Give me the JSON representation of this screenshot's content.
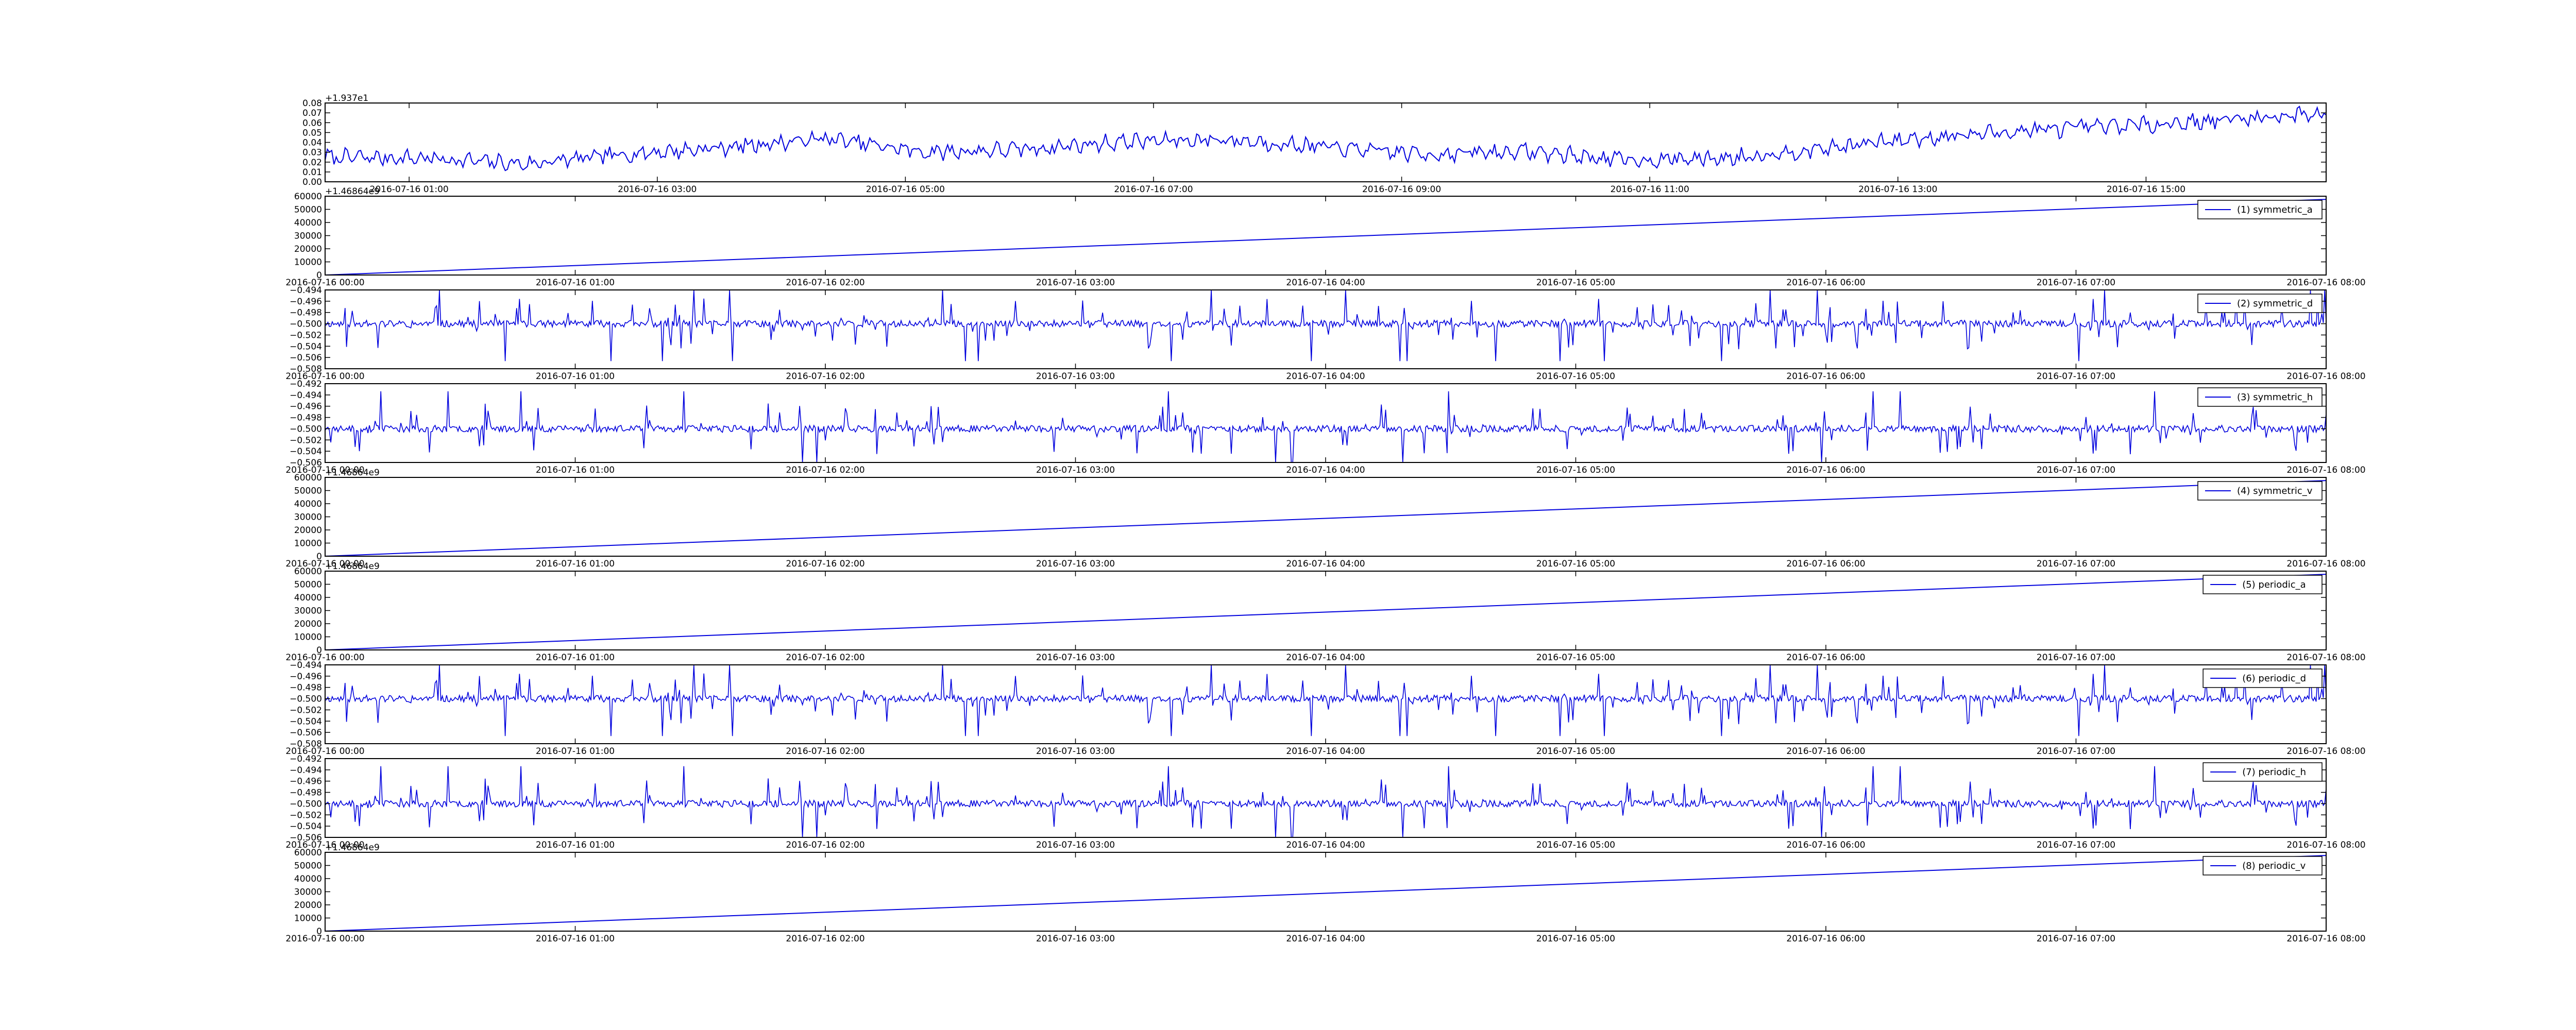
{
  "figure": {
    "colors": {
      "line": "#0000dd",
      "axes": "#000000",
      "background": "#ffffff"
    }
  },
  "chart_data": [
    {
      "id": "p0",
      "type": "line",
      "offset_text": "+1.937e1",
      "ylim": [
        0.0,
        0.08
      ],
      "y_ticks": [
        "0.00",
        "0.01",
        "0.02",
        "0.03",
        "0.04",
        "0.05",
        "0.06",
        "0.07",
        "0.08"
      ],
      "x_ticks": [
        "2016-07-16 01:00",
        "2016-07-16 03:00",
        "2016-07-16 05:00",
        "2016-07-16 07:00",
        "2016-07-16 09:00",
        "2016-07-16 11:00",
        "2016-07-16 13:00",
        "2016-07-16 15:00"
      ],
      "x_tick_positions": [
        0.042,
        0.166,
        0.29,
        0.414,
        0.538,
        0.662,
        0.786,
        0.91
      ],
      "series_style": "noisy-trend",
      "x": [
        0,
        0.05,
        0.1,
        0.15,
        0.2,
        0.25,
        0.3,
        0.35,
        0.4,
        0.45,
        0.5,
        0.55,
        0.6,
        0.65,
        0.7,
        0.75,
        0.8,
        0.85,
        0.9,
        0.95,
        1.0
      ],
      "y": [
        0.025,
        0.024,
        0.018,
        0.028,
        0.035,
        0.044,
        0.03,
        0.033,
        0.041,
        0.043,
        0.035,
        0.028,
        0.031,
        0.022,
        0.024,
        0.034,
        0.045,
        0.052,
        0.057,
        0.063,
        0.07
      ]
    },
    {
      "id": "p1",
      "type": "line",
      "offset_text": "+1.46864e9",
      "ylim": [
        0,
        60000
      ],
      "y_ticks": [
        "0",
        "10000",
        "20000",
        "30000",
        "40000",
        "50000",
        "60000"
      ],
      "x_ticks": [
        "2016-07-16 00:00",
        "2016-07-16 01:00",
        "2016-07-16 02:00",
        "2016-07-16 03:00",
        "2016-07-16 04:00",
        "2016-07-16 05:00",
        "2016-07-16 06:00",
        "2016-07-16 07:00",
        "2016-07-16 08:00"
      ],
      "series": [
        {
          "name": "(1) symmetric_a"
        }
      ],
      "series_style": "ramp",
      "x": [
        0,
        1
      ],
      "y": [
        0,
        57600
      ]
    },
    {
      "id": "p2",
      "type": "line",
      "ylim": [
        -0.508,
        -0.494
      ],
      "y_ticks": [
        "−0.508",
        "−0.506",
        "−0.504",
        "−0.502",
        "−0.500",
        "−0.498",
        "−0.496",
        "−0.494"
      ],
      "x_ticks": [
        "2016-07-16 00:00",
        "2016-07-16 01:00",
        "2016-07-16 02:00",
        "2016-07-16 03:00",
        "2016-07-16 04:00",
        "2016-07-16 05:00",
        "2016-07-16 06:00",
        "2016-07-16 07:00",
        "2016-07-16 08:00"
      ],
      "series": [
        {
          "name": "(2) symmetric_d"
        }
      ],
      "series_style": "spikes",
      "seed": 11,
      "center": -0.5,
      "amp": 0.0035
    },
    {
      "id": "p3",
      "type": "line",
      "ylim": [
        -0.506,
        -0.492
      ],
      "y_ticks": [
        "−0.506",
        "−0.504",
        "−0.502",
        "−0.500",
        "−0.498",
        "−0.496",
        "−0.494",
        "−0.492"
      ],
      "x_ticks": [
        "2016-07-16 00:00",
        "2016-07-16 01:00",
        "2016-07-16 02:00",
        "2016-07-16 03:00",
        "2016-07-16 04:00",
        "2016-07-16 05:00",
        "2016-07-16 06:00",
        "2016-07-16 07:00",
        "2016-07-16 08:00"
      ],
      "series": [
        {
          "name": "(3) symmetric_h"
        }
      ],
      "series_style": "spikes",
      "seed": 23,
      "center": -0.5,
      "amp": 0.0035
    },
    {
      "id": "p4",
      "type": "line",
      "offset_text": "+1.46864e9",
      "ylim": [
        0,
        60000
      ],
      "y_ticks": [
        "0",
        "10000",
        "20000",
        "30000",
        "40000",
        "50000",
        "60000"
      ],
      "x_ticks": [
        "2016-07-16 00:00",
        "2016-07-16 01:00",
        "2016-07-16 02:00",
        "2016-07-16 03:00",
        "2016-07-16 04:00",
        "2016-07-16 05:00",
        "2016-07-16 06:00",
        "2016-07-16 07:00",
        "2016-07-16 08:00"
      ],
      "series": [
        {
          "name": "(4) symmetric_v"
        }
      ],
      "series_style": "ramp",
      "x": [
        0,
        1
      ],
      "y": [
        0,
        57600
      ]
    },
    {
      "id": "p5",
      "type": "line",
      "offset_text": "+1.46864e9",
      "ylim": [
        0,
        60000
      ],
      "y_ticks": [
        "0",
        "10000",
        "20000",
        "30000",
        "40000",
        "50000",
        "60000"
      ],
      "x_ticks": [
        "2016-07-16 00:00",
        "2016-07-16 01:00",
        "2016-07-16 02:00",
        "2016-07-16 03:00",
        "2016-07-16 04:00",
        "2016-07-16 05:00",
        "2016-07-16 06:00",
        "2016-07-16 07:00",
        "2016-07-16 08:00"
      ],
      "series": [
        {
          "name": "(5) periodic_a"
        }
      ],
      "series_style": "ramp",
      "x": [
        0,
        1
      ],
      "y": [
        0,
        57600
      ]
    },
    {
      "id": "p6",
      "type": "line",
      "ylim": [
        -0.508,
        -0.494
      ],
      "y_ticks": [
        "−0.508",
        "−0.506",
        "−0.504",
        "−0.502",
        "−0.500",
        "−0.498",
        "−0.496",
        "−0.494"
      ],
      "x_ticks": [
        "2016-07-16 00:00",
        "2016-07-16 01:00",
        "2016-07-16 02:00",
        "2016-07-16 03:00",
        "2016-07-16 04:00",
        "2016-07-16 05:00",
        "2016-07-16 06:00",
        "2016-07-16 07:00",
        "2016-07-16 08:00"
      ],
      "series": [
        {
          "name": "(6) periodic_d"
        }
      ],
      "series_style": "spikes",
      "seed": 11,
      "center": -0.5,
      "amp": 0.0035
    },
    {
      "id": "p7",
      "type": "line",
      "ylim": [
        -0.506,
        -0.492
      ],
      "y_ticks": [
        "−0.506",
        "−0.504",
        "−0.502",
        "−0.500",
        "−0.498",
        "−0.496",
        "−0.494",
        "−0.492"
      ],
      "x_ticks": [
        "2016-07-16 00:00",
        "2016-07-16 01:00",
        "2016-07-16 02:00",
        "2016-07-16 03:00",
        "2016-07-16 04:00",
        "2016-07-16 05:00",
        "2016-07-16 06:00",
        "2016-07-16 07:00",
        "2016-07-16 08:00"
      ],
      "series": [
        {
          "name": "(7) periodic_h"
        }
      ],
      "series_style": "spikes",
      "seed": 23,
      "center": -0.5,
      "amp": 0.0035
    },
    {
      "id": "p8",
      "type": "line",
      "offset_text": "+1.46864e9",
      "ylim": [
        0,
        60000
      ],
      "y_ticks": [
        "0",
        "10000",
        "20000",
        "30000",
        "40000",
        "50000",
        "60000"
      ],
      "x_ticks": [
        "2016-07-16 00:00",
        "2016-07-16 01:00",
        "2016-07-16 02:00",
        "2016-07-16 03:00",
        "2016-07-16 04:00",
        "2016-07-16 05:00",
        "2016-07-16 06:00",
        "2016-07-16 07:00",
        "2016-07-16 08:00"
      ],
      "series": [
        {
          "name": "(8) periodic_v"
        }
      ],
      "series_style": "ramp",
      "x": [
        0,
        1
      ],
      "y": [
        0,
        57600
      ]
    }
  ]
}
